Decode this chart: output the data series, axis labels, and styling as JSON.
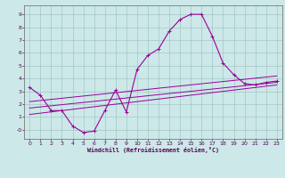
{
  "xlabel": "Windchill (Refroidissement éolien,°C)",
  "bg_color": "#cce8e8",
  "grid_color": "#9bbfbf",
  "line_color": "#990099",
  "xlim": [
    -0.5,
    23.5
  ],
  "ylim": [
    -0.7,
    9.7
  ],
  "xticks": [
    0,
    1,
    2,
    3,
    4,
    5,
    6,
    7,
    8,
    9,
    10,
    11,
    12,
    13,
    14,
    15,
    16,
    17,
    18,
    19,
    20,
    21,
    22,
    23
  ],
  "yticks": [
    0,
    1,
    2,
    3,
    4,
    5,
    6,
    7,
    8,
    9
  ],
  "main_x": [
    0,
    1,
    2,
    3,
    4,
    5,
    6,
    7,
    8,
    9,
    10,
    11,
    12,
    13,
    14,
    15,
    16,
    17,
    18,
    19,
    20,
    21,
    22,
    23
  ],
  "main_y": [
    3.3,
    2.7,
    1.5,
    1.5,
    0.3,
    -0.2,
    -0.1,
    1.5,
    3.1,
    1.4,
    4.7,
    5.8,
    6.3,
    7.7,
    8.6,
    9.0,
    9.0,
    7.3,
    5.2,
    4.3,
    3.6,
    3.5,
    3.7,
    3.8
  ],
  "line2_x": [
    0,
    23
  ],
  "line2_y": [
    1.7,
    3.7
  ],
  "line3_x": [
    0,
    23
  ],
  "line3_y": [
    1.2,
    3.5
  ],
  "line4_x": [
    0,
    23
  ],
  "line4_y": [
    2.2,
    4.2
  ]
}
